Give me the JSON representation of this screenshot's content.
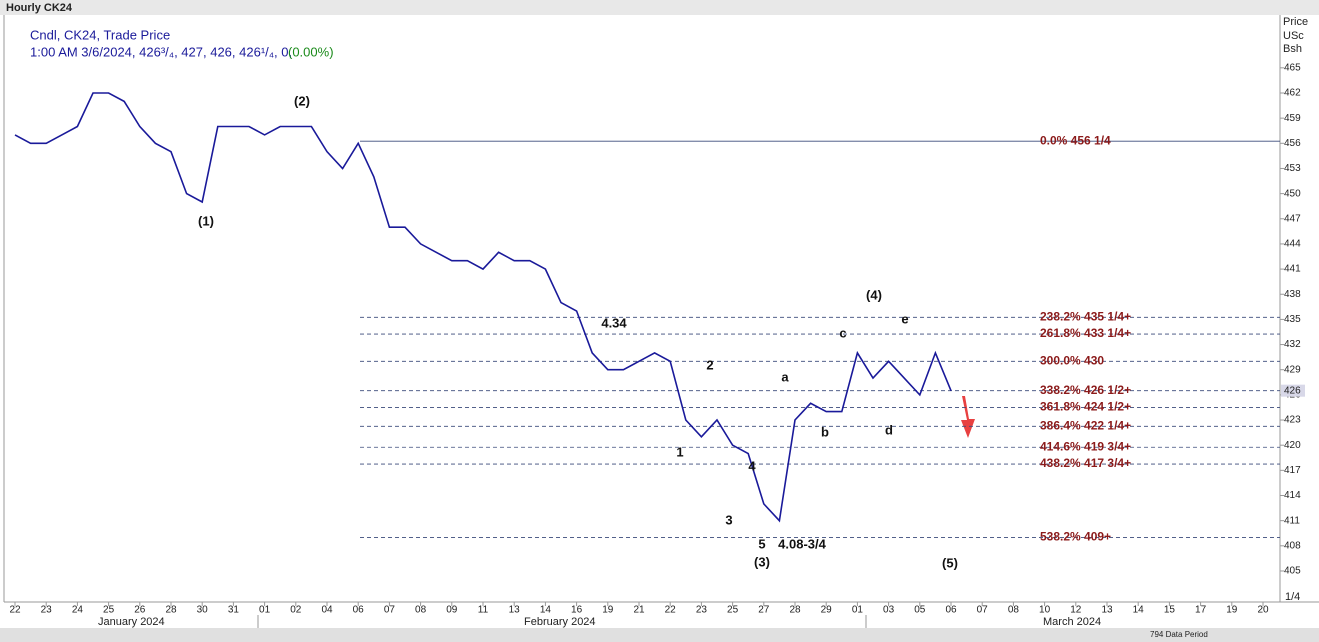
{
  "chart_data": {
    "type": "line",
    "title": "Hourly CK24",
    "legend_lines": [
      "Cndl, CK24, Trade Price",
      "1:00 AM 3/6/2024, 426³/₄, 427, 426, 426¹/₄, 0,"
    ],
    "change_label": "(0.00%)",
    "y_axis_header": [
      "Price",
      "USc",
      "Bsh"
    ],
    "last_price_label": "426",
    "footer_labels": [
      "1/4",
      "794 Data Period"
    ],
    "month_labels": [
      "January 2024",
      "February 2024",
      "March 2024"
    ],
    "categories": [
      "22",
      null,
      "23",
      null,
      "24",
      null,
      "25",
      null,
      "26",
      null,
      "28",
      null,
      "30",
      null,
      "31",
      null,
      "01",
      null,
      "02",
      null,
      "04",
      null,
      "06",
      null,
      "07",
      null,
      "08",
      null,
      "09",
      null,
      "11",
      null,
      "13",
      null,
      "14",
      null,
      "16",
      null,
      "19",
      null,
      "21",
      null,
      "22",
      null,
      "23",
      null,
      "25",
      null,
      "27",
      null,
      "28",
      null,
      "29",
      null,
      "01",
      null,
      "03",
      null,
      "05",
      null,
      "06",
      null,
      "07",
      null,
      "08",
      null,
      "10",
      null,
      "12",
      null,
      "13",
      null,
      "14",
      null,
      "15",
      null,
      "17",
      null,
      "19",
      null,
      "20"
    ],
    "series": [
      {
        "name": "CK24",
        "color": "#1a1a9a",
        "values": [
          457,
          456,
          456,
          457,
          458,
          462,
          462,
          461,
          458,
          456,
          455,
          450,
          449,
          458,
          458,
          458,
          457,
          458,
          458,
          458,
          455,
          453,
          456,
          452,
          446,
          446,
          444,
          443,
          442,
          442,
          441,
          443,
          442,
          442,
          441,
          437,
          436,
          431,
          429,
          429,
          430,
          431,
          430,
          423,
          421,
          423,
          420,
          419,
          413,
          411,
          423,
          425,
          424,
          424,
          431,
          428,
          430,
          428,
          426,
          431,
          426.5,
          null,
          null,
          null,
          null,
          null,
          null,
          null,
          null,
          null,
          null,
          null,
          null,
          null,
          null,
          null,
          null,
          null,
          null,
          null,
          null
        ]
      }
    ],
    "levels": [
      {
        "value": 456.25,
        "label": "0.0%     456 1/4"
      },
      {
        "value": 435.25,
        "label": "238.2% 435 1/4+"
      },
      {
        "value": 433.25,
        "label": "261.8% 433 1/4+"
      },
      {
        "value": 430,
        "label": "300.0% 430"
      },
      {
        "value": 426.5,
        "label": "338.2% 426 1/2+"
      },
      {
        "value": 424.5,
        "label": "361.8% 424 1/2+"
      },
      {
        "value": 422.25,
        "label": "386.4% 422 1/4+"
      },
      {
        "value": 419.75,
        "label": "414.6% 419 3/4+"
      },
      {
        "value": 417.75,
        "label": "438.2% 417 3/4+"
      },
      {
        "value": 409,
        "label": "538.2% 409+"
      }
    ],
    "annotations": [
      "(1)",
      "(2)",
      "(3)",
      "(4)",
      "(5)",
      "1",
      "2",
      "3",
      "4",
      "5",
      "a",
      "b",
      "c",
      "d",
      "e",
      "4.34",
      "4.08-3/4"
    ],
    "ylim": [
      401.3,
      471.3
    ],
    "yticks": [
      405,
      408,
      411,
      414,
      417,
      420,
      423,
      426,
      429,
      432,
      435,
      438,
      441,
      444,
      447,
      450,
      453,
      456,
      459,
      462,
      465
    ],
    "grid": false
  }
}
